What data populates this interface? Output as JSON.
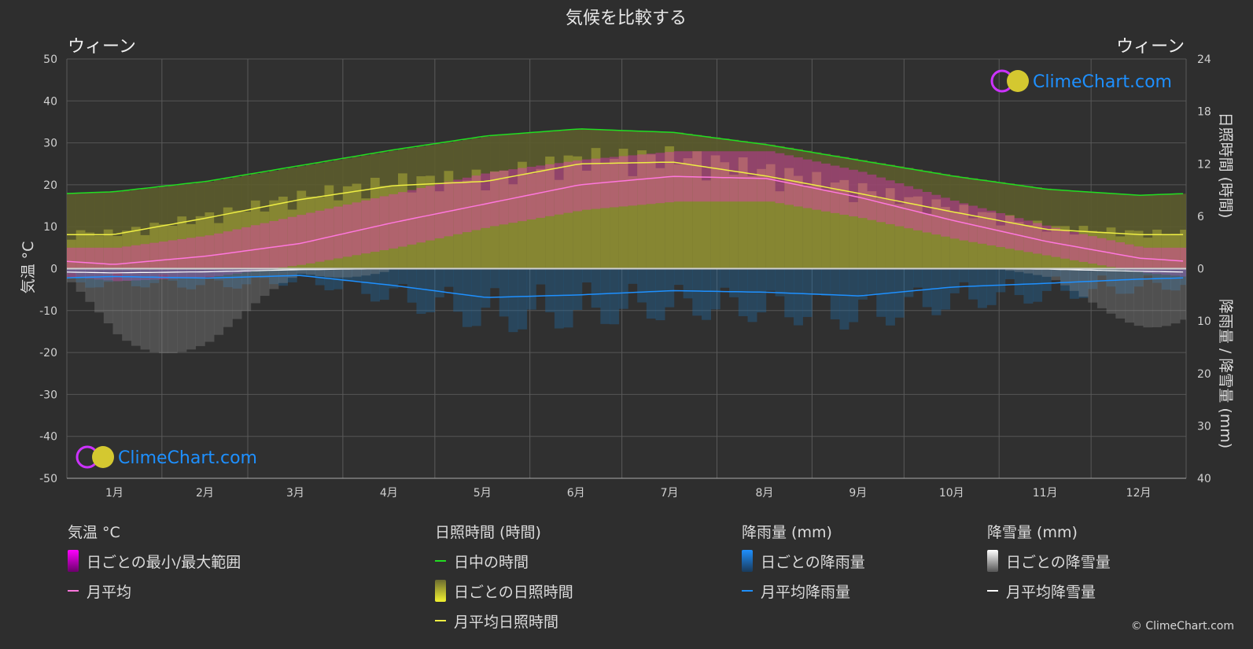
{
  "title": "気候を比較する",
  "location_left": "ウィーン",
  "location_right": "ウィーン",
  "brand": "ClimeChart.com",
  "copyright": "© ClimeChart.com",
  "colors": {
    "background": "#2e2e2e",
    "temp_range": "#ff22dd",
    "temp_avg": "#ff77dd",
    "daylight": "#22dd22",
    "sunshine_daily": "#c8c840",
    "sunshine_avg": "#eeee44",
    "rain": "#1e90ff",
    "snow": "#ffffff",
    "brand_text": "#1e90ff"
  },
  "legend": {
    "temperature": {
      "title": "気温 °C",
      "items": [
        {
          "label": "日ごとの最小/最大範囲",
          "swatch": "gradient",
          "color_top": "#ff00ff",
          "color_bottom": "#6a006a"
        },
        {
          "label": "月平均",
          "swatch": "line",
          "color": "#ff77dd"
        }
      ]
    },
    "sunshine": {
      "title": "日照時間 (時間)",
      "items": [
        {
          "label": "日中の時間",
          "swatch": "line",
          "color": "#22dd22"
        },
        {
          "label": "日ごとの日照時間",
          "swatch": "gradient",
          "color_top": "#6b6b30",
          "color_bottom": "#f2f230"
        },
        {
          "label": "月平均日照時間",
          "swatch": "line",
          "color": "#eeee44"
        }
      ]
    },
    "rain": {
      "title": "降雨量 (mm)",
      "items": [
        {
          "label": "日ごとの降雨量",
          "swatch": "gradient",
          "color_top": "#1e90ff",
          "color_bottom": "#1a3a5a"
        },
        {
          "label": "月平均降雨量",
          "swatch": "line",
          "color": "#1e90ff"
        }
      ]
    },
    "snow": {
      "title": "降雪量 (mm)",
      "items": [
        {
          "label": "日ごとの降雪量",
          "swatch": "gradient",
          "color_top": "#ffffff",
          "color_bottom": "#555555"
        },
        {
          "label": "月平均降雪量",
          "swatch": "line",
          "color": "#ffffff"
        }
      ]
    }
  },
  "chart_data": {
    "type": "line",
    "title": "気候を比較する",
    "categories": [
      "1月",
      "2月",
      "3月",
      "4月",
      "5月",
      "6月",
      "7月",
      "8月",
      "9月",
      "10月",
      "11月",
      "12月"
    ],
    "axes": {
      "y_left": {
        "label": "気温 °C",
        "range": [
          -50,
          50
        ],
        "ticks": [
          50,
          40,
          30,
          20,
          10,
          0,
          -10,
          -20,
          -30,
          -40,
          -50
        ]
      },
      "y_right_top": {
        "label": "日照時間 (時間)",
        "range": [
          0,
          24
        ],
        "ticks": [
          24,
          18,
          12,
          6,
          0
        ]
      },
      "y_right_bottom": {
        "label": "降雨量 / 降雪量 (mm)",
        "range": [
          0,
          40
        ],
        "ticks": [
          10,
          20,
          30,
          40
        ]
      }
    },
    "grid": true,
    "series": [
      {
        "name": "日中の時間",
        "axis": "y_right_top",
        "values": [
          8.8,
          10.0,
          11.8,
          13.6,
          15.2,
          16.0,
          15.6,
          14.2,
          12.4,
          10.6,
          9.1,
          8.4
        ]
      },
      {
        "name": "月平均日照時間",
        "axis": "y_right_top",
        "values": [
          3.9,
          5.8,
          7.9,
          9.5,
          10.0,
          12.0,
          12.2,
          10.6,
          8.6,
          6.5,
          4.5,
          3.9
        ]
      },
      {
        "name": "月平均",
        "axis": "y_left",
        "values": [
          1.0,
          3.0,
          6.0,
          11.0,
          15.5,
          20.0,
          22.0,
          21.5,
          17.0,
          11.5,
          6.5,
          2.5
        ]
      },
      {
        "name": "日ごとの最小/最大範囲",
        "axis": "y_left",
        "min": [
          -3,
          -2,
          1,
          5,
          10,
          14,
          16,
          16,
          12,
          7,
          3,
          -1
        ],
        "max": [
          5,
          8,
          13,
          18,
          23,
          26,
          28,
          28,
          23,
          16,
          10,
          5
        ]
      },
      {
        "name": "月平均降雨量",
        "axis": "y_right_bottom",
        "values": [
          1.5,
          1.8,
          1.3,
          3.2,
          5.5,
          5.0,
          4.2,
          4.5,
          5.2,
          3.5,
          2.8,
          2.0
        ]
      },
      {
        "name": "月平均降雪量",
        "axis": "y_right_bottom",
        "values": [
          0.8,
          0.6,
          0.2,
          0.0,
          0.0,
          0.0,
          0.0,
          0.0,
          0.0,
          0.0,
          0.1,
          0.5
        ]
      }
    ]
  }
}
